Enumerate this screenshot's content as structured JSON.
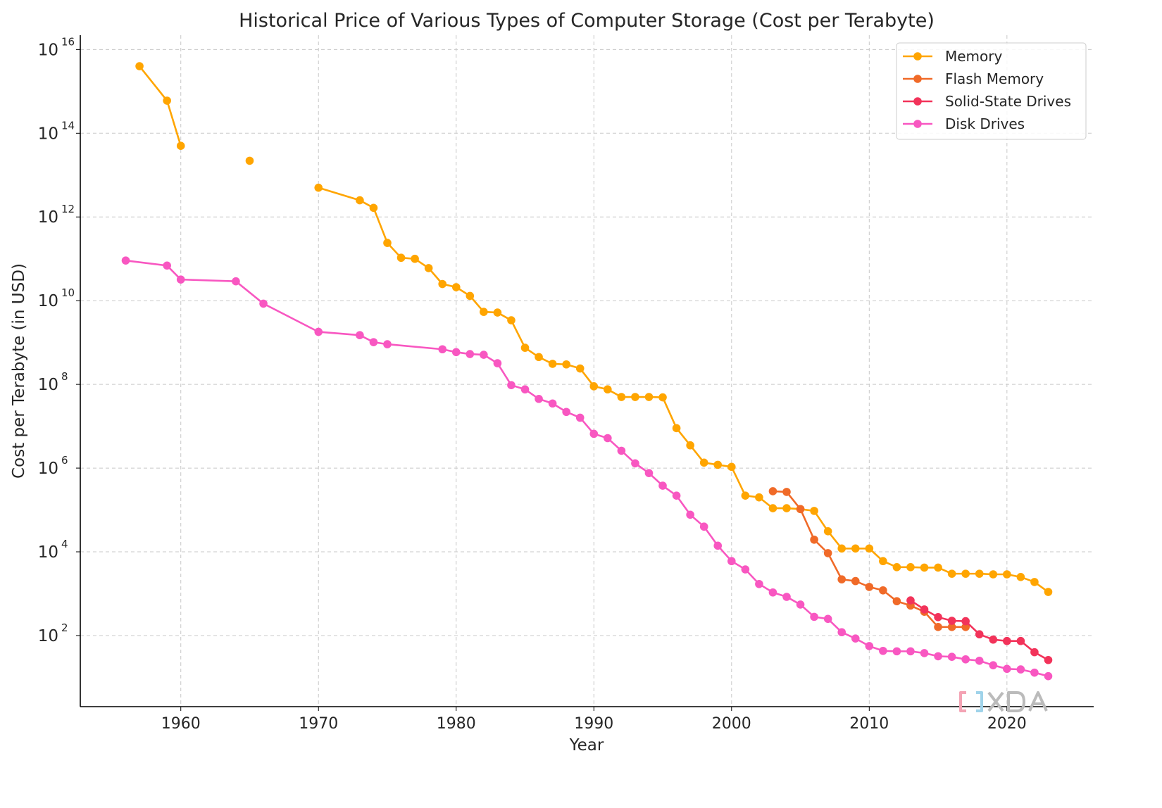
{
  "chart_data": {
    "type": "line",
    "title": "Historical Price of Various Types of Computer Storage (Cost per Terabyte)",
    "xlabel": "Year",
    "ylabel": "Cost per Terabyte (in USD)",
    "xlim": [
      1952.7,
      2026.3
    ],
    "ylim": [
      2,
      2.2e+16
    ],
    "yscale": "log",
    "xticks": [
      1960,
      1970,
      1980,
      1990,
      2000,
      2010,
      2020
    ],
    "yticks": [
      {
        "value": 100.0,
        "base": "10",
        "exp": "2"
      },
      {
        "value": 10000.0,
        "base": "10",
        "exp": "4"
      },
      {
        "value": 1000000.0,
        "base": "10",
        "exp": "6"
      },
      {
        "value": 100000000.0,
        "base": "10",
        "exp": "8"
      },
      {
        "value": 10000000000.0,
        "base": "10",
        "exp": "10"
      },
      {
        "value": 1000000000000.0,
        "base": "10",
        "exp": "12"
      },
      {
        "value": 100000000000000.0,
        "base": "10",
        "exp": "14"
      },
      {
        "value": 1e+16,
        "base": "10",
        "exp": "16"
      }
    ],
    "grid": true,
    "legend_position": "top-right",
    "series": [
      {
        "name": "Memory",
        "color": "#FFA500",
        "points": [
          [
            1957,
            4000000000000000.0
          ],
          [
            1959,
            600000000000000.0
          ],
          [
            1960,
            50000000000000.0
          ],
          [
            1962,
            null
          ],
          [
            1965,
            22000000000000.0
          ],
          [
            1967,
            null
          ],
          [
            1970,
            5000000000000.0
          ],
          [
            1973,
            2500000000000.0
          ],
          [
            1974,
            1650000000000.0
          ],
          [
            1975,
            240000000000.0
          ],
          [
            1976,
            106000000000.0
          ],
          [
            1977,
            100000000000.0
          ],
          [
            1978,
            60000000000.0
          ],
          [
            1979,
            25000000000.0
          ],
          [
            1980,
            21000000000.0
          ],
          [
            1981,
            13000000000.0
          ],
          [
            1982,
            5400000000.0
          ],
          [
            1983,
            5200000000.0
          ],
          [
            1984,
            3400000000.0
          ],
          [
            1985,
            750000000.0
          ],
          [
            1986,
            450000000.0
          ],
          [
            1987,
            310000000.0
          ],
          [
            1988,
            300000000.0
          ],
          [
            1989,
            240000000.0
          ],
          [
            1990,
            90000000.0
          ],
          [
            1991,
            76000000.0
          ],
          [
            1992,
            50000000.0
          ],
          [
            1993,
            50000000.0
          ],
          [
            1994,
            50000000.0
          ],
          [
            1995,
            49000000.0
          ],
          [
            1996,
            9000000.0
          ],
          [
            1997,
            3500000.0
          ],
          [
            1998,
            1350000.0
          ],
          [
            1999,
            1200000.0
          ],
          [
            2000,
            1070000.0
          ],
          [
            2001,
            220000.0
          ],
          [
            2002,
            200000.0
          ],
          [
            2003,
            110000.0
          ],
          [
            2004,
            110000.0
          ],
          [
            2005,
            105000.0
          ],
          [
            2006,
            95000.0
          ],
          [
            2007,
            31000.0
          ],
          [
            2008,
            12000.0
          ],
          [
            2009,
            12000.0
          ],
          [
            2010,
            12000.0
          ],
          [
            2011,
            6000.0
          ],
          [
            2012,
            4300.0
          ],
          [
            2013,
            4300.0
          ],
          [
            2014,
            4200.0
          ],
          [
            2015,
            4200.0
          ],
          [
            2016,
            3000.0
          ],
          [
            2017,
            3000.0
          ],
          [
            2018,
            3000.0
          ],
          [
            2019,
            2900.0
          ],
          [
            2020,
            2900.0
          ],
          [
            2021,
            2500.0
          ],
          [
            2022,
            1900.0
          ],
          [
            2023,
            1100.0
          ]
        ]
      },
      {
        "name": "Flash Memory",
        "color": "#F06A28",
        "points": [
          [
            2003,
            280000.0
          ],
          [
            2004,
            270000.0
          ],
          [
            2005,
            105000.0
          ],
          [
            2006,
            19500.0
          ],
          [
            2007,
            9300.0
          ],
          [
            2008,
            2200.0
          ],
          [
            2009,
            2000.0
          ],
          [
            2010,
            1450.0
          ],
          [
            2011,
            1200.0
          ],
          [
            2012,
            660
          ],
          [
            2013,
            520
          ],
          [
            2014,
            370
          ],
          [
            2015,
            160
          ],
          [
            2016,
            160
          ],
          [
            2017,
            160
          ]
        ]
      },
      {
        "name": "Solid-State Drives",
        "color": "#F2335A",
        "points": [
          [
            2013,
            690
          ],
          [
            2014,
            420
          ],
          [
            2015,
            275
          ],
          [
            2016,
            225
          ],
          [
            2017,
            220
          ],
          [
            2018,
            107
          ],
          [
            2019,
            80
          ],
          [
            2020,
            74
          ],
          [
            2021,
            74
          ],
          [
            2022,
            40
          ],
          [
            2023,
            26
          ]
        ]
      },
      {
        "name": "Disk Drives",
        "color": "#F857C1",
        "points": [
          [
            1956,
            91000000000.0
          ],
          [
            1959,
            69000000000.0
          ],
          [
            1960,
            32000000000.0
          ],
          [
            1964,
            29000000000.0
          ],
          [
            1966,
            8500000000.0
          ],
          [
            1970,
            1800000000.0
          ],
          [
            1973,
            1500000000.0
          ],
          [
            1974,
            1020000000.0
          ],
          [
            1975,
            910000000.0
          ],
          [
            1979,
            690000000.0
          ],
          [
            1980,
            590000000.0
          ],
          [
            1981,
            530000000.0
          ],
          [
            1982,
            510000000.0
          ],
          [
            1983,
            320000000.0
          ],
          [
            1984,
            96000000.0
          ],
          [
            1985,
            76000000.0
          ],
          [
            1986,
            45000000.0
          ],
          [
            1987,
            35000000.0
          ],
          [
            1988,
            22000000.0
          ],
          [
            1989,
            16000000.0
          ],
          [
            1990,
            6600000.0
          ],
          [
            1991,
            5200000.0
          ],
          [
            1992,
            2600000.0
          ],
          [
            1993,
            1300000.0
          ],
          [
            1994,
            760000.0
          ],
          [
            1995,
            380000.0
          ],
          [
            1996,
            220000.0
          ],
          [
            1997,
            77000.0
          ],
          [
            1998,
            40000.0
          ],
          [
            1999,
            14000.0
          ],
          [
            2000,
            6000.0
          ],
          [
            2001,
            3800.0
          ],
          [
            2002,
            1700.0
          ],
          [
            2003,
            1070.0
          ],
          [
            2004,
            840
          ],
          [
            2005,
            550
          ],
          [
            2006,
            280
          ],
          [
            2007,
            250
          ],
          [
            2008,
            120
          ],
          [
            2009,
            85
          ],
          [
            2010,
            56
          ],
          [
            2011,
            43
          ],
          [
            2012,
            42
          ],
          [
            2013,
            42
          ],
          [
            2014,
            38
          ],
          [
            2015,
            32
          ],
          [
            2016,
            31
          ],
          [
            2017,
            27
          ],
          [
            2018,
            25
          ],
          [
            2019,
            19.5
          ],
          [
            2020,
            16
          ],
          [
            2021,
            15.5
          ],
          [
            2022,
            13
          ],
          [
            2023,
            10.7
          ]
        ]
      }
    ],
    "watermark": "XDA"
  }
}
